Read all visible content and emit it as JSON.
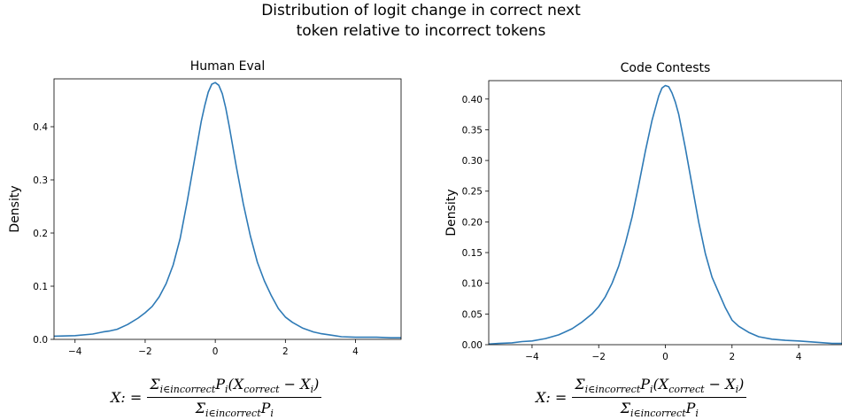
{
  "figure": {
    "suptitle_line1": "Distribution of logit change in correct next",
    "suptitle_line2": "token relative to incorrect tokens"
  },
  "formula": {
    "lhs": "X: =",
    "sum_symbol": "Σ",
    "sub_i_incorrect": "i∈incorrect",
    "P": "P",
    "sub_i": "i",
    "X": "X",
    "sub_correct": "correct",
    "minus": "−",
    "open_paren": "(",
    "close_paren": ")"
  },
  "chart_data": [
    {
      "type": "line",
      "title": "Human Eval",
      "xlabel": "",
      "ylabel": "Density",
      "xlim": [
        -4.6,
        5.3
      ],
      "ylim": [
        0,
        0.49
      ],
      "xticks": [
        -4,
        -2,
        0,
        2,
        4
      ],
      "xtick_labels": [
        "−4",
        "−2",
        "0",
        "2",
        "4"
      ],
      "yticks": [
        0.0,
        0.1,
        0.2,
        0.3,
        0.4
      ],
      "ytick_labels": [
        "0.0",
        "0.1",
        "0.2",
        "0.3",
        "0.4"
      ],
      "color": "#2e7ab6",
      "grid": false,
      "x": [
        -4.6,
        -4.0,
        -3.5,
        -3.2,
        -3.0,
        -2.8,
        -2.5,
        -2.2,
        -2.0,
        -1.8,
        -1.6,
        -1.4,
        -1.2,
        -1.0,
        -0.8,
        -0.6,
        -0.4,
        -0.3,
        -0.2,
        -0.1,
        0.0,
        0.1,
        0.2,
        0.3,
        0.4,
        0.6,
        0.8,
        1.0,
        1.2,
        1.4,
        1.6,
        1.8,
        2.0,
        2.2,
        2.5,
        2.8,
        3.0,
        3.3,
        3.6,
        4.0,
        4.3,
        4.6,
        5.0,
        5.3
      ],
      "y": [
        0.006,
        0.007,
        0.01,
        0.014,
        0.016,
        0.019,
        0.028,
        0.04,
        0.05,
        0.062,
        0.08,
        0.105,
        0.14,
        0.19,
        0.26,
        0.335,
        0.41,
        0.44,
        0.465,
        0.48,
        0.483,
        0.478,
        0.462,
        0.435,
        0.4,
        0.325,
        0.255,
        0.195,
        0.145,
        0.11,
        0.082,
        0.058,
        0.042,
        0.032,
        0.021,
        0.014,
        0.011,
        0.008,
        0.005,
        0.004,
        0.004,
        0.004,
        0.003,
        0.003
      ]
    },
    {
      "type": "line",
      "title": "Code Contests",
      "xlabel": "",
      "ylabel": "Density",
      "xlim": [
        -5.3,
        5.3
      ],
      "ylim": [
        0,
        0.43
      ],
      "xticks": [
        -4,
        -2,
        0,
        2,
        4
      ],
      "xtick_labels": [
        "−4",
        "−2",
        "0",
        "2",
        "4"
      ],
      "yticks": [
        0.0,
        0.05,
        0.1,
        0.15,
        0.2,
        0.25,
        0.3,
        0.35,
        0.4
      ],
      "ytick_labels": [
        "0.00",
        "0.05",
        "0.10",
        "0.15",
        "0.20",
        "0.25",
        "0.30",
        "0.35",
        "0.40"
      ],
      "color": "#2e7ab6",
      "grid": false,
      "x": [
        -5.3,
        -5.0,
        -4.6,
        -4.3,
        -4.0,
        -3.6,
        -3.2,
        -2.8,
        -2.5,
        -2.2,
        -2.0,
        -1.8,
        -1.6,
        -1.4,
        -1.2,
        -1.0,
        -0.8,
        -0.6,
        -0.4,
        -0.2,
        -0.1,
        0.0,
        0.1,
        0.2,
        0.3,
        0.4,
        0.6,
        0.8,
        1.0,
        1.2,
        1.4,
        1.6,
        1.8,
        2.0,
        2.2,
        2.5,
        2.8,
        3.2,
        3.6,
        4.0,
        4.5,
        5.0,
        5.3
      ],
      "y": [
        0.001,
        0.002,
        0.003,
        0.005,
        0.006,
        0.01,
        0.016,
        0.026,
        0.037,
        0.05,
        0.062,
        0.078,
        0.1,
        0.128,
        0.165,
        0.208,
        0.26,
        0.315,
        0.365,
        0.405,
        0.418,
        0.422,
        0.42,
        0.41,
        0.395,
        0.375,
        0.32,
        0.26,
        0.2,
        0.148,
        0.11,
        0.085,
        0.06,
        0.04,
        0.03,
        0.02,
        0.013,
        0.009,
        0.007,
        0.006,
        0.004,
        0.002,
        0.002
      ]
    }
  ]
}
